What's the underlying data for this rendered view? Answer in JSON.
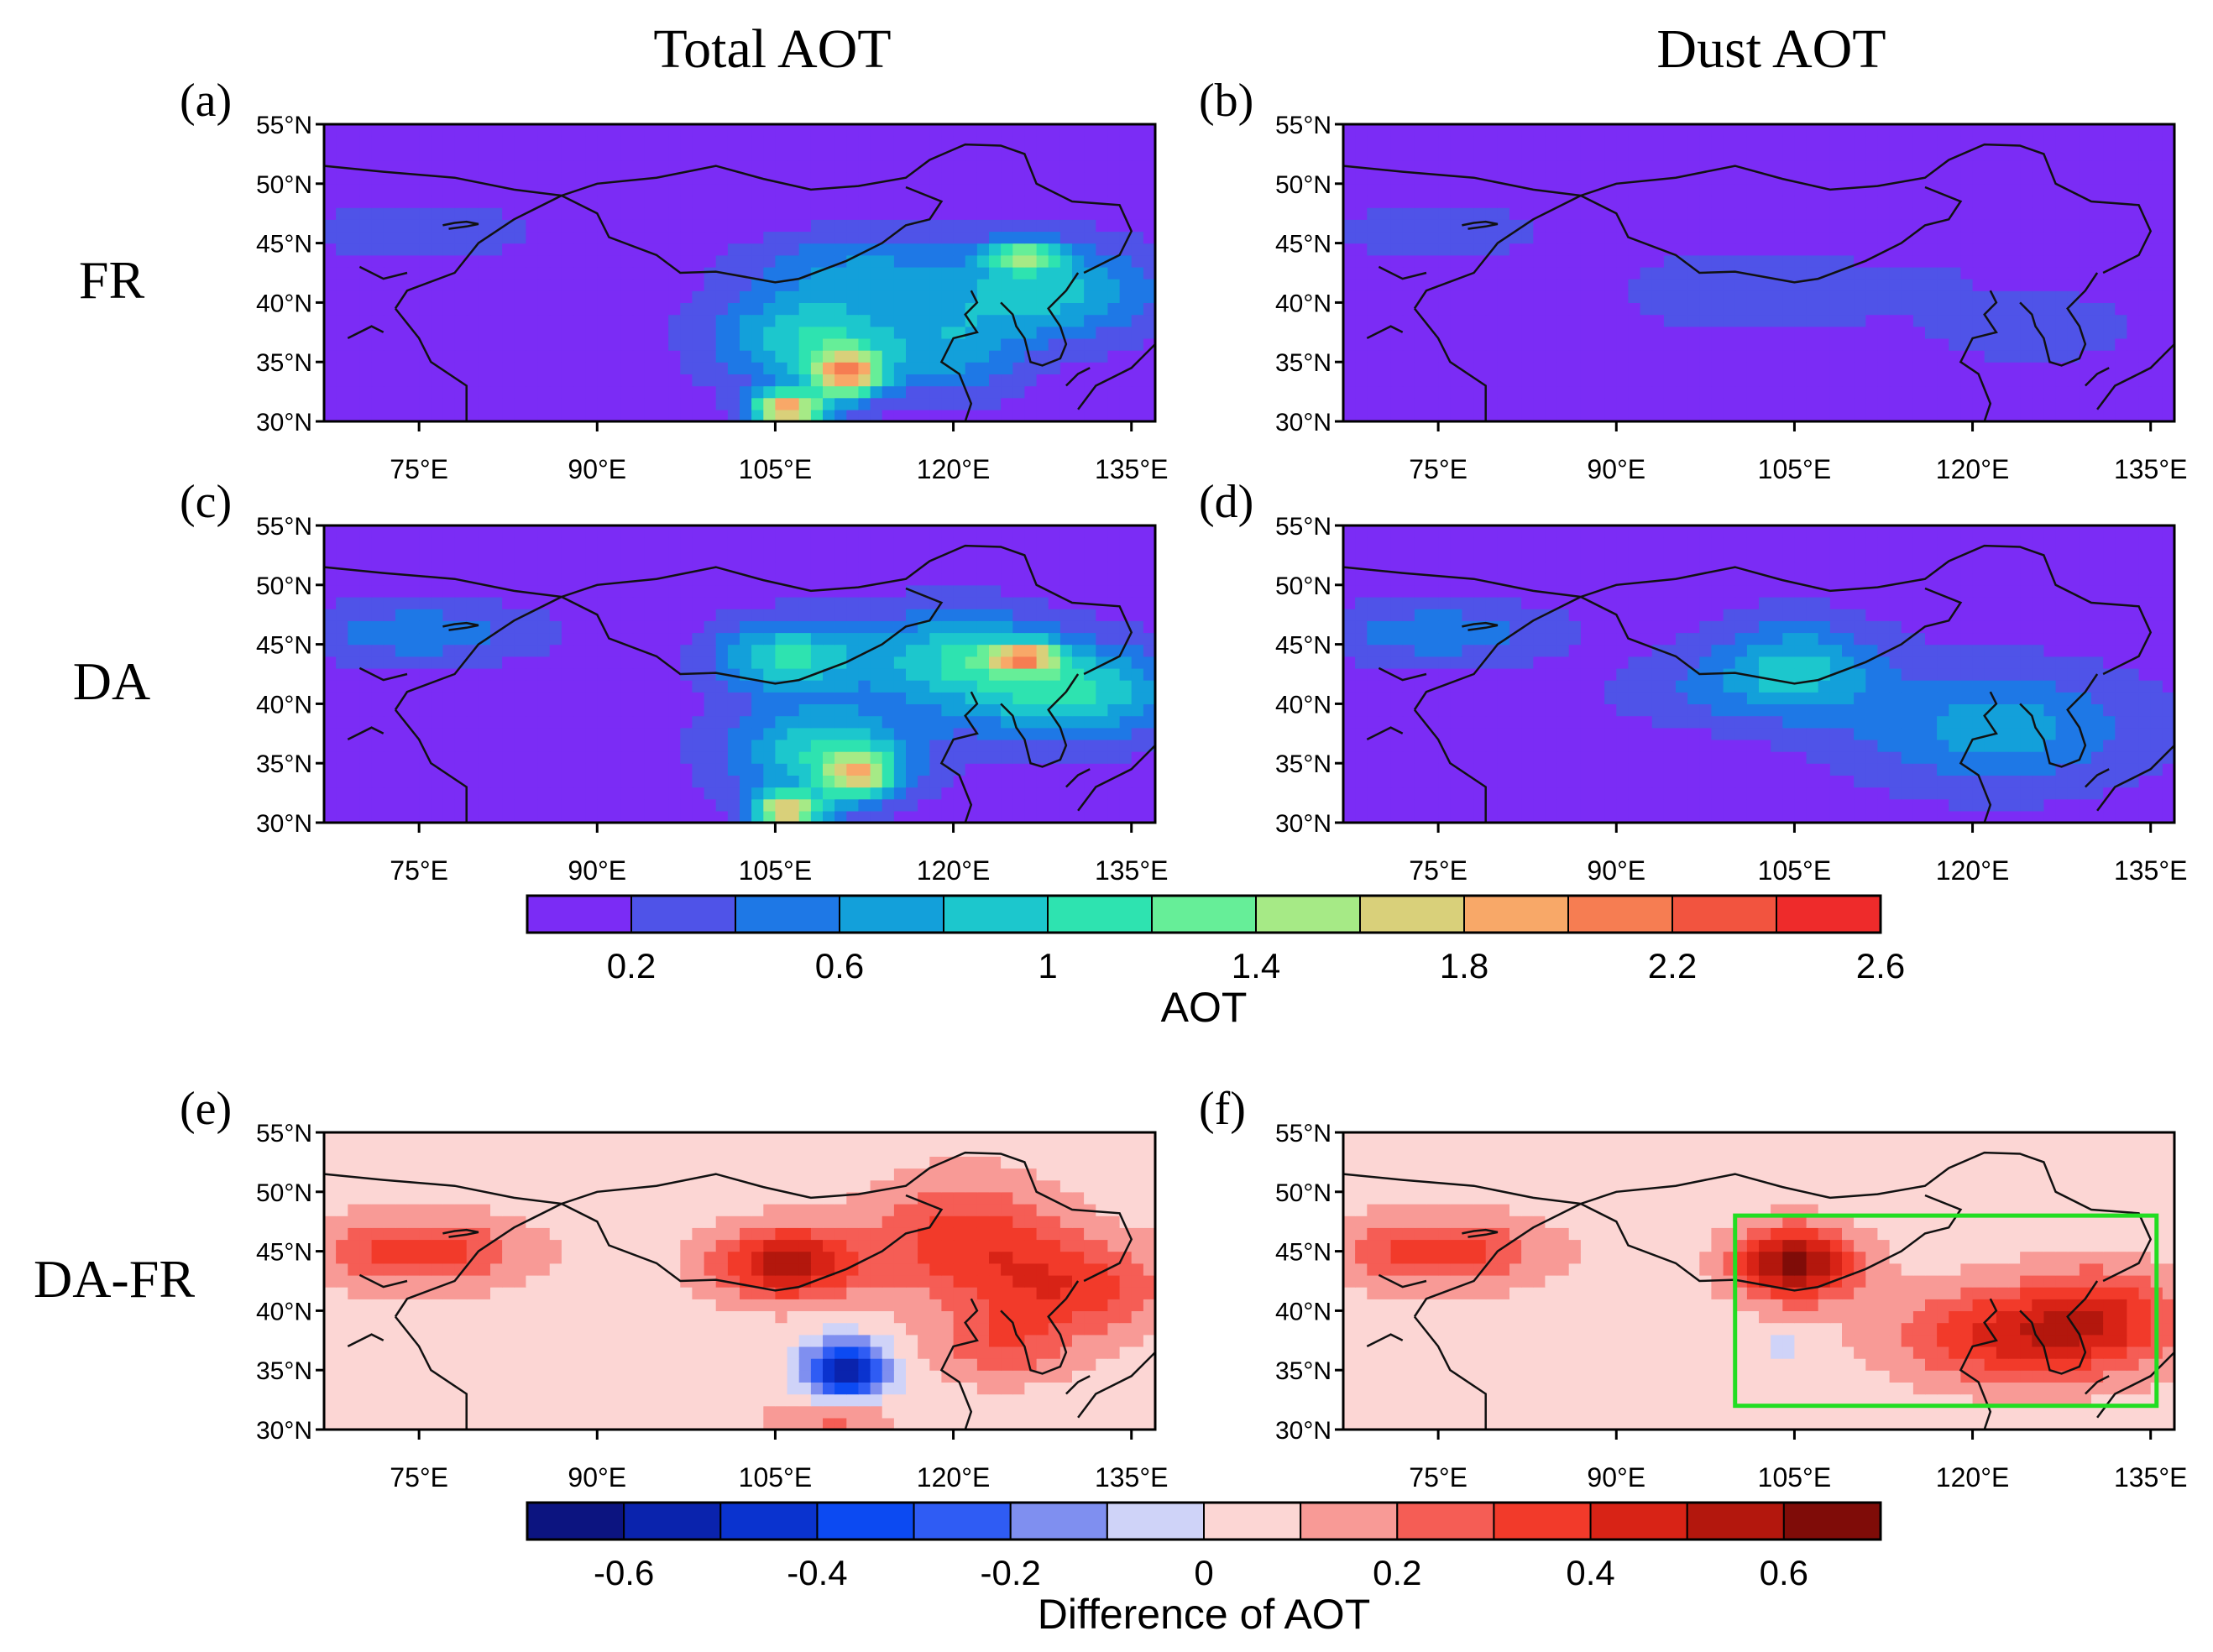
{
  "chart_data": {
    "type": "heatmap",
    "column_titles": [
      "Total AOT",
      "Dust AOT"
    ],
    "row_labels": [
      "FR",
      "DA",
      "DA-FR"
    ],
    "lon_ticks": [
      "75°E",
      "90°E",
      "105°E",
      "120°E",
      "135°E"
    ],
    "lat_ticks": [
      "55°N",
      "50°N",
      "45°N",
      "40°N",
      "35°N",
      "30°N"
    ],
    "lon_range": [
      67,
      137
    ],
    "lat_range": [
      30,
      55
    ],
    "lon_tick_values": [
      75,
      90,
      105,
      120,
      135
    ],
    "lat_tick_values": [
      55,
      50,
      45,
      40,
      35,
      30
    ],
    "panels": [
      {
        "id": "a",
        "label": "(a)",
        "row": "FR",
        "column": "Total AOT",
        "field": "total_fr"
      },
      {
        "id": "b",
        "label": "(b)",
        "row": "FR",
        "column": "Dust AOT",
        "field": "dust_fr"
      },
      {
        "id": "c",
        "label": "(c)",
        "row": "DA",
        "column": "Total AOT",
        "field": "total_da"
      },
      {
        "id": "d",
        "label": "(d)",
        "row": "DA",
        "column": "Dust AOT",
        "field": "dust_da"
      },
      {
        "id": "e",
        "label": "(e)",
        "row": "DA-FR",
        "column": "Total AOT",
        "field": "total_diff"
      },
      {
        "id": "f",
        "label": "(f)",
        "row": "DA-FR",
        "column": "Dust AOT",
        "field": "dust_diff"
      }
    ],
    "highlight_box": {
      "panel": "f",
      "lon": [
        100,
        135.5
      ],
      "lat": [
        32,
        48
      ],
      "color": "#22dd22"
    },
    "colorbars": [
      {
        "title": "AOT",
        "tick_labels": [
          "0.2",
          "0.6",
          "1",
          "1.4",
          "1.8",
          "2.2",
          "2.6"
        ],
        "tick_values": [
          0.2,
          0.6,
          1.0,
          1.4,
          1.8,
          2.2,
          2.6
        ],
        "levels": [
          0.2,
          0.4,
          0.6,
          0.8,
          1.0,
          1.2,
          1.4,
          1.6,
          1.8,
          2.0,
          2.2,
          2.4,
          2.6
        ],
        "colors": [
          "#7b2cf5",
          "#4f53e8",
          "#1e78e6",
          "#13a0da",
          "#1cc7cd",
          "#2ee3b0",
          "#66ee98",
          "#a6ea86",
          "#d9d07a",
          "#f8a868",
          "#f67d52",
          "#f2543f",
          "#ee2b2b"
        ]
      },
      {
        "title": "Difference of AOT",
        "tick_labels": [
          "-0.6",
          "-0.4",
          "-0.2",
          "0",
          "0.2",
          "0.4",
          "0.6"
        ],
        "tick_values": [
          -0.6,
          -0.4,
          -0.2,
          0,
          0.2,
          0.4,
          0.6
        ],
        "levels": [
          -0.6,
          -0.5,
          -0.4,
          -0.3,
          -0.2,
          -0.1,
          0,
          0.1,
          0.2,
          0.3,
          0.4,
          0.5,
          0.6
        ],
        "colors": [
          "#0c1480",
          "#0a23ad",
          "#0a33cf",
          "#0c4af2",
          "#2f5cf4",
          "#7f8ff0",
          "#cfd3f8",
          "#fcd6d4",
          "#f89a96",
          "#f55d55",
          "#f23a2a",
          "#d82316",
          "#b3170d",
          "#7f0c08"
        ]
      }
    ],
    "fields": {
      "total_fr": {
        "base": 0.1,
        "blobs": [
          {
            "lon": 75,
            "lat": 46,
            "rx": 10,
            "ry": 2.5,
            "v": 0.25
          },
          {
            "lon": 112,
            "lat": 43,
            "rx": 9,
            "ry": 3,
            "v": 0.45
          },
          {
            "lon": 108,
            "lat": 37,
            "rx": 8,
            "ry": 4,
            "v": 0.9
          },
          {
            "lon": 111,
            "lat": 34,
            "rx": 3,
            "ry": 2,
            "v": 1.6
          },
          {
            "lon": 106,
            "lat": 31,
            "rx": 3,
            "ry": 1.5,
            "v": 1.8
          },
          {
            "lon": 128,
            "lat": 41,
            "rx": 9,
            "ry": 4,
            "v": 0.8
          },
          {
            "lon": 126,
            "lat": 44,
            "rx": 3,
            "ry": 1.2,
            "v": 1.0
          },
          {
            "lon": 120,
            "lat": 36,
            "rx": 6,
            "ry": 4,
            "v": 0.5
          }
        ]
      },
      "dust_fr": {
        "base": 0.1,
        "blobs": [
          {
            "lon": 75,
            "lat": 46,
            "rx": 10,
            "ry": 2.5,
            "v": 0.2
          },
          {
            "lon": 102,
            "lat": 41,
            "rx": 12,
            "ry": 3.5,
            "v": 0.25
          },
          {
            "lon": 125,
            "lat": 38,
            "rx": 8,
            "ry": 3,
            "v": 0.25
          },
          {
            "lon": 116,
            "lat": 42,
            "rx": 3,
            "ry": 1.5,
            "v": 0.15
          }
        ]
      },
      "total_da": {
        "base": 0.1,
        "blobs": [
          {
            "lon": 75,
            "lat": 46,
            "rx": 10,
            "ry": 2.5,
            "v": 0.45
          },
          {
            "lon": 106,
            "lat": 44,
            "rx": 6,
            "ry": 3,
            "v": 0.9
          },
          {
            "lon": 120,
            "lat": 44,
            "rx": 8,
            "ry": 4,
            "v": 0.8
          },
          {
            "lon": 109,
            "lat": 36,
            "rx": 8,
            "ry": 4,
            "v": 0.9
          },
          {
            "lon": 112,
            "lat": 34,
            "rx": 3,
            "ry": 2,
            "v": 1.2
          },
          {
            "lon": 106,
            "lat": 31,
            "rx": 3,
            "ry": 1.5,
            "v": 1.6
          },
          {
            "lon": 130,
            "lat": 41,
            "rx": 9,
            "ry": 4,
            "v": 0.9
          },
          {
            "lon": 126,
            "lat": 44,
            "rx": 3,
            "ry": 1.2,
            "v": 1.2
          }
        ]
      },
      "dust_da": {
        "base": 0.1,
        "blobs": [
          {
            "lon": 75,
            "lat": 46,
            "rx": 10,
            "ry": 2.5,
            "v": 0.45
          },
          {
            "lon": 105,
            "lat": 43,
            "rx": 7,
            "ry": 4,
            "v": 0.75
          },
          {
            "lon": 122,
            "lat": 38,
            "rx": 12,
            "ry": 5,
            "v": 0.6
          },
          {
            "lon": 96,
            "lat": 41,
            "rx": 8,
            "ry": 3,
            "v": 0.2
          }
        ]
      },
      "total_diff": {
        "base": 0.05,
        "blobs": [
          {
            "lon": 75,
            "lat": 45,
            "rx": 9,
            "ry": 3,
            "v": 0.3
          },
          {
            "lon": 106,
            "lat": 44,
            "rx": 6,
            "ry": 3,
            "v": 0.5
          },
          {
            "lon": 121,
            "lat": 46,
            "rx": 8,
            "ry": 5,
            "v": 0.3
          },
          {
            "lon": 130,
            "lat": 42,
            "rx": 8,
            "ry": 4,
            "v": 0.3
          },
          {
            "lon": 111,
            "lat": 35,
            "rx": 3.5,
            "ry": 2.5,
            "v": -0.6
          },
          {
            "lon": 110,
            "lat": 31,
            "rx": 5,
            "ry": 1.5,
            "v": 0.2
          },
          {
            "lon": 124,
            "lat": 37,
            "rx": 6,
            "ry": 3,
            "v": 0.2
          }
        ]
      },
      "dust_diff": {
        "base": 0.05,
        "blobs": [
          {
            "lon": 75,
            "lat": 45,
            "rx": 9,
            "ry": 3,
            "v": 0.3
          },
          {
            "lon": 105,
            "lat": 44,
            "rx": 5,
            "ry": 3,
            "v": 0.6
          },
          {
            "lon": 124,
            "lat": 38,
            "rx": 10,
            "ry": 4,
            "v": 0.4
          },
          {
            "lon": 131,
            "lat": 40,
            "rx": 6,
            "ry": 4,
            "v": 0.25
          },
          {
            "lon": 104,
            "lat": 37,
            "rx": 2,
            "ry": 1,
            "v": -0.1
          }
        ]
      }
    }
  }
}
